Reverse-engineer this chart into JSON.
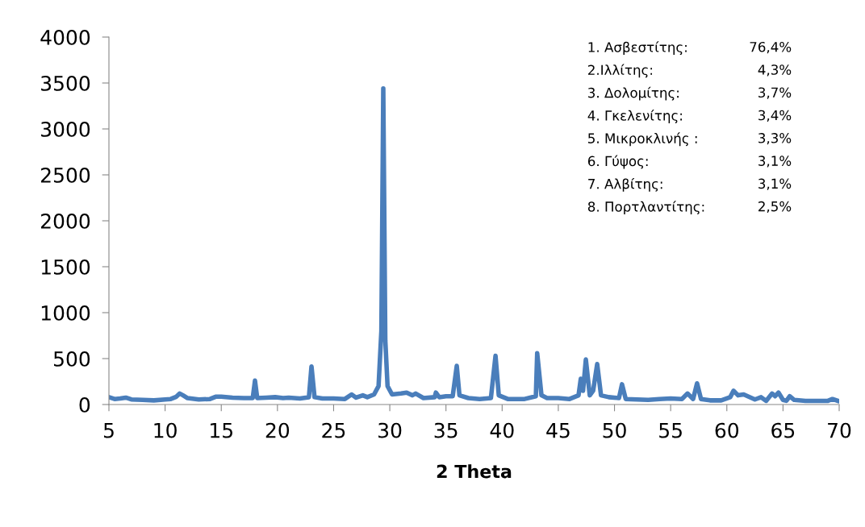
{
  "chart_data": {
    "type": "line",
    "xlabel": "2 Theta",
    "x": [
      5.0,
      5.5,
      6.0,
      6.5,
      7.0,
      8.0,
      9.0,
      10.0,
      10.5,
      11.0,
      11.3,
      11.6,
      12.0,
      13.0,
      14.0,
      14.5,
      15.0,
      16.0,
      17.0,
      17.8,
      18.0,
      18.2,
      19.0,
      19.8,
      20.5,
      21.0,
      22.0,
      22.8,
      23.03,
      23.3,
      24.0,
      25.0,
      26.0,
      26.6,
      27.0,
      27.6,
      28.0,
      28.6,
      29.0,
      29.25,
      29.42,
      29.6,
      29.8,
      30.2,
      31.0,
      31.5,
      32.0,
      32.3,
      33.0,
      34.0,
      34.1,
      34.4,
      35.0,
      35.6,
      35.96,
      36.2,
      37.0,
      38.0,
      39.0,
      39.41,
      39.7,
      40.5,
      42.0,
      43.0,
      43.12,
      43.5,
      44.0,
      45.0,
      46.0,
      46.8,
      47.0,
      47.2,
      47.45,
      47.8,
      48.1,
      48.46,
      48.8,
      49.5,
      50.4,
      50.67,
      51.0,
      52.0,
      53.0,
      54.0,
      55.0,
      56.0,
      56.5,
      57.0,
      57.35,
      57.7,
      58.5,
      59.5,
      60.3,
      60.6,
      61.0,
      61.5,
      62.5,
      63.05,
      63.5,
      64.03,
      64.3,
      64.6,
      65.0,
      65.3,
      65.6,
      66.0,
      67.0,
      68.0,
      69.0,
      69.4,
      70.0
    ],
    "values": [
      80,
      60,
      65,
      75,
      55,
      50,
      45,
      55,
      60,
      85,
      120,
      100,
      70,
      55,
      60,
      85,
      85,
      75,
      70,
      70,
      260,
      70,
      75,
      80,
      70,
      75,
      65,
      80,
      415,
      80,
      65,
      65,
      60,
      110,
      75,
      100,
      80,
      110,
      200,
      800,
      3440,
      700,
      200,
      110,
      120,
      130,
      100,
      120,
      70,
      80,
      130,
      80,
      90,
      90,
      420,
      100,
      70,
      60,
      70,
      530,
      100,
      60,
      60,
      90,
      560,
      100,
      70,
      70,
      60,
      100,
      280,
      150,
      490,
      100,
      150,
      440,
      100,
      80,
      70,
      220,
      60,
      55,
      50,
      60,
      65,
      60,
      120,
      60,
      230,
      60,
      45,
      45,
      80,
      150,
      100,
      110,
      55,
      80,
      40,
      120,
      90,
      130,
      50,
      40,
      90,
      50,
      40,
      40,
      40,
      60,
      35
    ],
    "color": "#4a7ebb",
    "marker": "none",
    "line_style": "solid",
    "grid": false,
    "legend": false,
    "xlim": [
      5,
      70
    ],
    "xticks": [
      5,
      10,
      15,
      20,
      25,
      30,
      35,
      40,
      45,
      50,
      55,
      60,
      65,
      70
    ],
    "ylim": [
      0,
      4000
    ],
    "yticks": [
      0,
      500,
      1000,
      1500,
      2000,
      2500,
      3000,
      3500,
      4000
    ],
    "annotations": [
      "1. Ασβεστίτης: 76,4%",
      "2.Ιλλίτης: 4,3%",
      "3. Δολομίτης: 3,7%",
      "4. Γκελενίτης: 3,4%",
      "5. Μικροκλινής : 3,3%",
      "6. Γύψος: 3,1%",
      "7. Αλβίτης: 3,1%",
      "8. Πορτλαντίτης: 2,5%"
    ]
  }
}
